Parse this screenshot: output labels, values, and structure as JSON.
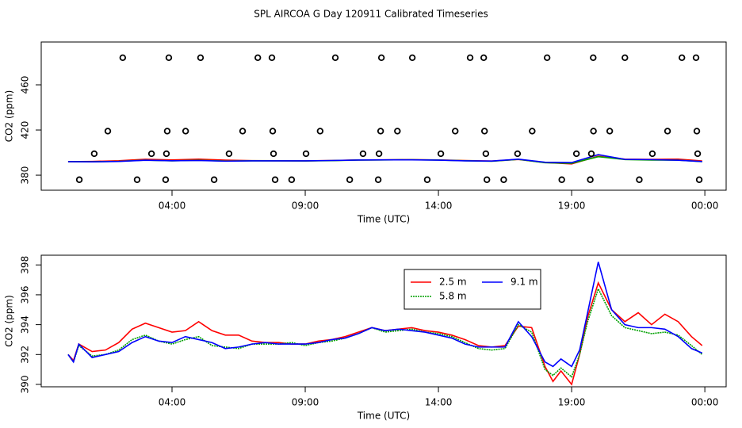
{
  "title": "SPL AIRCOA G  Day 120911  Calibrated Timeseries",
  "chart_data": [
    {
      "type": "line",
      "xlabel": "Time (UTC)",
      "ylabel": "CO2 (ppm)",
      "xlim": [
        -0.91,
        24.8
      ],
      "ylim": [
        366.7,
        497.9
      ],
      "xticks": [
        {
          "value": 4,
          "label": "04:00"
        },
        {
          "value": 9,
          "label": "09:00"
        },
        {
          "value": 14,
          "label": "14:00"
        },
        {
          "value": 19,
          "label": "19:00"
        },
        {
          "value": 24,
          "label": "00:00"
        }
      ],
      "yticks": [
        380,
        420,
        460
      ],
      "x": [
        0.1,
        1,
        2,
        3,
        4,
        5,
        6,
        7,
        8,
        9,
        10,
        11,
        12,
        13,
        14,
        15,
        16,
        17,
        18,
        19,
        20,
        21,
        22,
        23,
        23.9
      ],
      "series": [
        {
          "color": "#ff0000",
          "values": [
            392,
            392.2,
            392.8,
            394.1,
            393.5,
            394.2,
            393.3,
            392.9,
            392.8,
            392.7,
            393.0,
            393.5,
            393.6,
            393.8,
            393.5,
            393.0,
            392.5,
            393.9,
            391.2,
            390.0,
            396.8,
            394.2,
            394.0,
            394.2,
            392.6
          ]
        },
        {
          "color": "#00a000",
          "values": [
            392,
            391.9,
            392.3,
            393.3,
            392.7,
            393.2,
            392.5,
            392.7,
            392.7,
            392.6,
            392.9,
            393.4,
            393.5,
            393.7,
            393.4,
            392.8,
            392.3,
            394.0,
            391.0,
            390.5,
            396.4,
            393.8,
            393.4,
            393.3,
            392.0
          ]
        },
        {
          "color": "#0000ff",
          "values": [
            392,
            391.8,
            392.2,
            393.2,
            392.8,
            393.0,
            392.4,
            392.7,
            392.7,
            392.7,
            393.0,
            393.4,
            393.6,
            393.6,
            393.3,
            392.7,
            392.5,
            394.2,
            391.5,
            391.2,
            398.2,
            394.0,
            393.8,
            393.2,
            392.1
          ]
        },
        {
          "color": "#000000",
          "marker": "circle",
          "x": [
            2.15,
            3.88,
            5.07,
            7.22,
            7.75,
            10.13,
            11.86,
            13.02,
            15.19,
            15.7,
            18.08,
            19.81,
            21.0,
            23.14,
            23.67,
            1.59,
            3.82,
            4.51,
            6.65,
            7.78,
            9.56,
            11.83,
            12.46,
            14.63,
            15.73,
            17.52,
            19.82,
            20.43,
            22.6,
            23.7,
            1.08,
            3.23,
            3.79,
            6.14,
            7.81,
            9.03,
            11.17,
            11.77,
            14.09,
            15.78,
            16.97,
            19.18,
            19.74,
            22.03,
            23.73,
            0.52,
            2.69,
            3.76,
            5.58,
            7.87,
            8.49,
            10.67,
            11.74,
            13.58,
            15.82,
            16.45,
            18.63,
            19.7,
            21.54,
            23.79
          ],
          "values": [
            484,
            484,
            484,
            484,
            484,
            484,
            484,
            484,
            484,
            484,
            484,
            484,
            484,
            484,
            484,
            419,
            419,
            419,
            419,
            419,
            419,
            419,
            419,
            419,
            419,
            419,
            419,
            419,
            419,
            419,
            399,
            399,
            399,
            399,
            399,
            399,
            399,
            399,
            399,
            399,
            399,
            399,
            399,
            399,
            399,
            376,
            376,
            376,
            376,
            376,
            376,
            376,
            376,
            376,
            376,
            376,
            376,
            376,
            376,
            376
          ]
        }
      ]
    },
    {
      "type": "line",
      "xlabel": "Time (UTC)",
      "ylabel": "CO2 (ppm)",
      "xlim": [
        -0.91,
        24.8
      ],
      "ylim": [
        389.84,
        398.65
      ],
      "xticks": [
        {
          "value": 4,
          "label": "04:00"
        },
        {
          "value": 9,
          "label": "09:00"
        },
        {
          "value": 14,
          "label": "14:00"
        },
        {
          "value": 19,
          "label": "19:00"
        },
        {
          "value": 24,
          "label": "00:00"
        }
      ],
      "yticks": [
        390,
        392,
        394,
        396,
        398
      ],
      "legend": "top",
      "x": [
        0.1,
        0.3,
        0.5,
        1,
        1.5,
        2,
        2.5,
        3,
        3.5,
        4,
        4.5,
        5,
        5.5,
        6,
        6.5,
        7,
        7.5,
        8,
        8.5,
        9,
        9.5,
        10,
        10.5,
        11,
        11.5,
        12,
        12.5,
        13,
        13.5,
        14,
        14.5,
        15,
        15.5,
        16,
        16.5,
        17,
        17.5,
        18,
        18.3,
        18.6,
        19,
        19.3,
        19.6,
        20,
        20.5,
        21,
        21.5,
        22,
        22.5,
        23,
        23.5,
        23.9
      ],
      "series": [
        {
          "name": "2.5 m",
          "color": "#ff0000",
          "values": [
            392.0,
            391.6,
            392.7,
            392.2,
            392.3,
            392.8,
            393.7,
            394.1,
            393.8,
            393.5,
            393.6,
            394.2,
            393.6,
            393.3,
            393.3,
            392.9,
            392.8,
            392.8,
            392.7,
            392.7,
            392.9,
            393.0,
            393.2,
            393.5,
            393.8,
            393.6,
            393.7,
            393.8,
            393.6,
            393.5,
            393.3,
            393.0,
            392.6,
            392.5,
            392.6,
            393.9,
            393.8,
            391.2,
            390.2,
            390.9,
            390.0,
            392.0,
            394.5,
            396.8,
            395.0,
            394.2,
            394.8,
            394.0,
            394.7,
            394.2,
            393.2,
            392.6
          ]
        },
        {
          "name": "5.8 m",
          "color": "#00a000",
          "linestyle": "dotted",
          "values": [
            392.0,
            391.5,
            392.6,
            391.9,
            392.0,
            392.3,
            393.0,
            393.3,
            392.9,
            392.7,
            393.0,
            393.2,
            392.6,
            392.5,
            392.4,
            392.7,
            392.7,
            392.7,
            392.8,
            392.6,
            392.8,
            392.9,
            393.1,
            393.4,
            393.8,
            393.5,
            393.6,
            393.7,
            393.5,
            393.4,
            393.2,
            392.8,
            392.4,
            392.3,
            392.4,
            394.0,
            393.5,
            391.0,
            390.6,
            391.1,
            390.5,
            392.0,
            394.2,
            396.4,
            394.6,
            393.8,
            393.6,
            393.4,
            393.5,
            393.3,
            392.6,
            392.0
          ]
        },
        {
          "name": "9.1 m",
          "color": "#0000ff",
          "values": [
            392.0,
            391.5,
            392.7,
            391.8,
            392.0,
            392.2,
            392.8,
            393.2,
            392.9,
            392.8,
            393.2,
            393.0,
            392.8,
            392.4,
            392.5,
            392.7,
            392.8,
            392.7,
            392.7,
            392.7,
            392.8,
            393.0,
            393.1,
            393.4,
            393.8,
            393.6,
            393.7,
            393.6,
            393.5,
            393.3,
            393.1,
            392.7,
            392.5,
            392.5,
            392.5,
            394.2,
            393.2,
            391.5,
            391.2,
            391.7,
            391.2,
            392.3,
            394.8,
            398.2,
            395.0,
            394.0,
            393.8,
            393.8,
            393.7,
            393.2,
            392.4,
            392.1
          ]
        }
      ]
    }
  ]
}
